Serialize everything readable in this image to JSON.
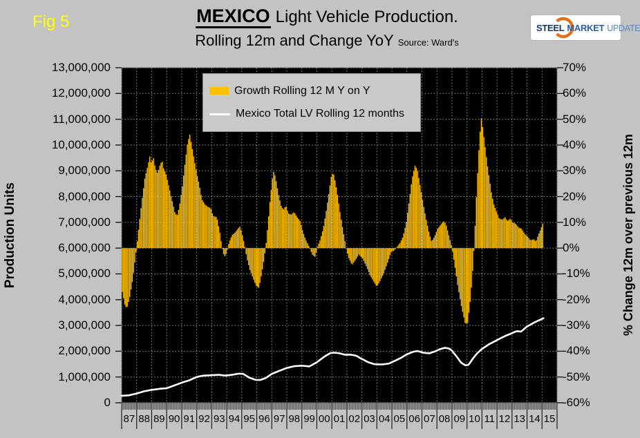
{
  "fig_label": "Fig 5",
  "title": {
    "emphasis": "MEXICO",
    "rest": "Light Vehicle Production.",
    "line2": "Rolling 12m and Change YoY",
    "source": "Source: Ward's"
  },
  "logo": {
    "steel": "STEEL",
    "market": "MARKET",
    "update": "UPDATE",
    "arc_color": "#e2711d"
  },
  "left_axis": {
    "title": "Production Units",
    "min": 0,
    "max": 13000000,
    "ticks": [
      "13,000,000",
      "12,000,000",
      "11,000,000",
      "10,000,000",
      "9,000,000",
      "8,000,000",
      "7,000,000",
      "6,000,000",
      "5,000,000",
      "4,000,000",
      "3,000,000",
      "2,000,000",
      "1,000,000",
      "0"
    ]
  },
  "right_axis": {
    "title": "% Change 12m over previous 12m",
    "min": -60,
    "max": 70,
    "ticks": [
      "70%",
      "60%",
      "50%",
      "40%",
      "30%",
      "20%",
      "10%",
      "0%",
      "-10%",
      "-20%",
      "-30%",
      "-40%",
      "-50%",
      "-60%"
    ]
  },
  "x_axis": {
    "labels": [
      "87",
      "88",
      "89",
      "90",
      "91",
      "92",
      "93",
      "94",
      "95",
      "96",
      "97",
      "98",
      "99",
      "00",
      "01",
      "02",
      "03",
      "04",
      "05",
      "06",
      "07",
      "08",
      "09",
      "10",
      "11",
      "12",
      "13",
      "14",
      "15"
    ]
  },
  "legend": [
    {
      "label": "Growth Rolling 12 M Y on Y",
      "type": "bar",
      "color": "#ffc000"
    },
    {
      "label": "Mexico Total LV Rolling 12 months",
      "type": "line",
      "color": "#ffffff"
    }
  ],
  "colors": {
    "page_bg": "#c3c3c3",
    "plot_bg": "#000000",
    "grid": "#9a9a9a",
    "bar": "#ffc000",
    "line": "#ffffff",
    "fig_label": "#ffff00"
  },
  "chart_data": {
    "type": "combo",
    "title": "MEXICO Light Vehicle Production. Rolling 12m and Change YoY",
    "x_start": 1987,
    "x_end": 2016,
    "grid": "dotted",
    "legend_position": "top-left-inside",
    "series": [
      {
        "name": "Growth Rolling 12 M Y on Y",
        "type": "bar",
        "axis": "right",
        "unit": "percent",
        "color": "#ffc000",
        "frequency": "monthly",
        "keypoints": [
          [
            1987.0,
            -17
          ],
          [
            1987.17,
            -22
          ],
          [
            1987.3,
            -23.5
          ],
          [
            1987.5,
            -19
          ],
          [
            1987.7,
            -12
          ],
          [
            1987.95,
            0
          ],
          [
            1988.1,
            8
          ],
          [
            1988.3,
            18
          ],
          [
            1988.5,
            27
          ],
          [
            1988.7,
            32
          ],
          [
            1988.85,
            36
          ],
          [
            1988.95,
            32
          ],
          [
            1989.05,
            36
          ],
          [
            1989.2,
            31
          ],
          [
            1989.35,
            29
          ],
          [
            1989.5,
            32
          ],
          [
            1989.65,
            34
          ],
          [
            1989.75,
            31
          ],
          [
            1989.9,
            29
          ],
          [
            1990.1,
            24
          ],
          [
            1990.3,
            19
          ],
          [
            1990.5,
            14
          ],
          [
            1990.65,
            12.5
          ],
          [
            1990.8,
            16
          ],
          [
            1991.0,
            24
          ],
          [
            1991.2,
            34
          ],
          [
            1991.35,
            41
          ],
          [
            1991.5,
            44
          ],
          [
            1991.65,
            39
          ],
          [
            1991.8,
            34
          ],
          [
            1992.0,
            28
          ],
          [
            1992.15,
            24
          ],
          [
            1992.3,
            19
          ],
          [
            1992.5,
            17
          ],
          [
            1992.7,
            16
          ],
          [
            1992.9,
            15.5
          ],
          [
            1993.05,
            12.5
          ],
          [
            1993.3,
            12
          ],
          [
            1993.5,
            6
          ],
          [
            1993.65,
            0
          ],
          [
            1993.8,
            -3.5
          ],
          [
            1993.95,
            -2
          ],
          [
            1994.1,
            2
          ],
          [
            1994.3,
            5
          ],
          [
            1994.5,
            6
          ],
          [
            1994.7,
            7.5
          ],
          [
            1994.85,
            8.5
          ],
          [
            1995.0,
            5
          ],
          [
            1995.15,
            1
          ],
          [
            1995.3,
            -4
          ],
          [
            1995.5,
            -8.5
          ],
          [
            1995.7,
            -11.5
          ],
          [
            1995.9,
            -14.5
          ],
          [
            1996.1,
            -15.5
          ],
          [
            1996.25,
            -11
          ],
          [
            1996.4,
            -6
          ],
          [
            1996.55,
            0
          ],
          [
            1996.7,
            9
          ],
          [
            1996.85,
            19
          ],
          [
            1997.0,
            27
          ],
          [
            1997.1,
            30
          ],
          [
            1997.25,
            26
          ],
          [
            1997.4,
            21
          ],
          [
            1997.6,
            16
          ],
          [
            1997.75,
            15
          ],
          [
            1997.9,
            16.5
          ],
          [
            1998.05,
            13.5
          ],
          [
            1998.25,
            13
          ],
          [
            1998.45,
            14
          ],
          [
            1998.65,
            12
          ],
          [
            1998.85,
            10.5
          ],
          [
            1999.0,
            7
          ],
          [
            1999.2,
            3.5
          ],
          [
            1999.45,
            0.5
          ],
          [
            1999.65,
            -2.5
          ],
          [
            1999.85,
            -3.5
          ],
          [
            2000.0,
            0.5
          ],
          [
            2000.2,
            3.5
          ],
          [
            2000.4,
            8
          ],
          [
            2000.6,
            15
          ],
          [
            2000.8,
            23
          ],
          [
            2000.95,
            29
          ],
          [
            2001.1,
            28.5
          ],
          [
            2001.3,
            22
          ],
          [
            2001.5,
            14
          ],
          [
            2001.7,
            7
          ],
          [
            2001.9,
            0.5
          ],
          [
            2002.05,
            -3.5
          ],
          [
            2002.3,
            -6.5
          ],
          [
            2002.55,
            -4.5
          ],
          [
            2002.75,
            -2.5
          ],
          [
            2003.0,
            -4
          ],
          [
            2003.25,
            -7
          ],
          [
            2003.5,
            -10.5
          ],
          [
            2003.75,
            -13
          ],
          [
            2003.95,
            -15
          ],
          [
            2004.15,
            -13
          ],
          [
            2004.4,
            -10
          ],
          [
            2004.65,
            -6
          ],
          [
            2004.9,
            -1.5
          ],
          [
            2005.1,
            -1
          ],
          [
            2005.3,
            0.5
          ],
          [
            2005.5,
            2
          ],
          [
            2005.7,
            4.5
          ],
          [
            2005.9,
            9.5
          ],
          [
            2006.1,
            18
          ],
          [
            2006.3,
            27
          ],
          [
            2006.5,
            32
          ],
          [
            2006.65,
            30.5
          ],
          [
            2006.85,
            24
          ],
          [
            2007.05,
            17
          ],
          [
            2007.25,
            11
          ],
          [
            2007.45,
            5.5
          ],
          [
            2007.6,
            2.5
          ],
          [
            2007.8,
            4.5
          ],
          [
            2008.0,
            7.5
          ],
          [
            2008.2,
            9
          ],
          [
            2008.4,
            10.5
          ],
          [
            2008.55,
            9.5
          ],
          [
            2008.75,
            5
          ],
          [
            2008.95,
            0.5
          ],
          [
            2009.15,
            -7
          ],
          [
            2009.35,
            -15
          ],
          [
            2009.6,
            -23
          ],
          [
            2009.85,
            -29.5
          ],
          [
            2010.0,
            -29
          ],
          [
            2010.15,
            -22
          ],
          [
            2010.3,
            -12
          ],
          [
            2010.45,
            2
          ],
          [
            2010.6,
            22
          ],
          [
            2010.75,
            38
          ],
          [
            2010.9,
            51
          ],
          [
            2011.0,
            47
          ],
          [
            2011.15,
            40
          ],
          [
            2011.3,
            33
          ],
          [
            2011.45,
            27
          ],
          [
            2011.6,
            21
          ],
          [
            2011.75,
            17
          ],
          [
            2011.9,
            14.5
          ],
          [
            2012.1,
            11.5
          ],
          [
            2012.3,
            11
          ],
          [
            2012.5,
            12
          ],
          [
            2012.65,
            10.5
          ],
          [
            2012.85,
            11.5
          ],
          [
            2013.0,
            10
          ],
          [
            2013.2,
            9.5
          ],
          [
            2013.4,
            8
          ],
          [
            2013.6,
            7.5
          ],
          [
            2013.8,
            5.5
          ],
          [
            2014.0,
            4.5
          ],
          [
            2014.2,
            3
          ],
          [
            2014.4,
            3.5
          ],
          [
            2014.55,
            2.5
          ],
          [
            2014.7,
            5
          ],
          [
            2014.85,
            7
          ],
          [
            2015.0,
            9.5
          ]
        ]
      },
      {
        "name": "Mexico Total LV Rolling 12 months",
        "type": "line",
        "axis": "left",
        "unit": "units",
        "color": "#ffffff",
        "frequency": "monthly",
        "keypoints": [
          [
            1987.0,
            270000
          ],
          [
            1987.5,
            290000
          ],
          [
            1988.0,
            360000
          ],
          [
            1988.5,
            445000
          ],
          [
            1989.0,
            500000
          ],
          [
            1989.6,
            545000
          ],
          [
            1990.0,
            565000
          ],
          [
            1990.5,
            670000
          ],
          [
            1991.0,
            780000
          ],
          [
            1991.5,
            870000
          ],
          [
            1992.0,
            1000000
          ],
          [
            1992.4,
            1050000
          ],
          [
            1993.0,
            1070000
          ],
          [
            1993.5,
            1085000
          ],
          [
            1993.9,
            1055000
          ],
          [
            1994.3,
            1080000
          ],
          [
            1994.8,
            1130000
          ],
          [
            1995.1,
            1120000
          ],
          [
            1995.5,
            975000
          ],
          [
            1995.9,
            890000
          ],
          [
            1996.2,
            880000
          ],
          [
            1996.6,
            960000
          ],
          [
            1997.0,
            1120000
          ],
          [
            1997.5,
            1240000
          ],
          [
            1998.0,
            1350000
          ],
          [
            1998.5,
            1420000
          ],
          [
            1999.0,
            1440000
          ],
          [
            1999.5,
            1410000
          ],
          [
            2000.0,
            1570000
          ],
          [
            2000.5,
            1790000
          ],
          [
            2000.9,
            1930000
          ],
          [
            2001.2,
            1945000
          ],
          [
            2001.5,
            1920000
          ],
          [
            2001.9,
            1860000
          ],
          [
            2002.2,
            1870000
          ],
          [
            2002.6,
            1830000
          ],
          [
            2003.0,
            1700000
          ],
          [
            2003.4,
            1580000
          ],
          [
            2003.8,
            1500000
          ],
          [
            2004.3,
            1485000
          ],
          [
            2004.8,
            1520000
          ],
          [
            2005.2,
            1630000
          ],
          [
            2005.6,
            1740000
          ],
          [
            2006.0,
            1880000
          ],
          [
            2006.4,
            1975000
          ],
          [
            2006.7,
            2010000
          ],
          [
            2007.1,
            1940000
          ],
          [
            2007.5,
            1920000
          ],
          [
            2007.9,
            2000000
          ],
          [
            2008.2,
            2080000
          ],
          [
            2008.5,
            2130000
          ],
          [
            2008.8,
            2110000
          ],
          [
            2009.0,
            2020000
          ],
          [
            2009.3,
            1800000
          ],
          [
            2009.6,
            1560000
          ],
          [
            2009.9,
            1450000
          ],
          [
            2010.1,
            1470000
          ],
          [
            2010.4,
            1720000
          ],
          [
            2010.7,
            1930000
          ],
          [
            2011.0,
            2090000
          ],
          [
            2011.5,
            2280000
          ],
          [
            2012.0,
            2430000
          ],
          [
            2012.5,
            2580000
          ],
          [
            2013.0,
            2700000
          ],
          [
            2013.3,
            2780000
          ],
          [
            2013.6,
            2760000
          ],
          [
            2014.0,
            2960000
          ],
          [
            2014.5,
            3120000
          ],
          [
            2015.1,
            3280000
          ]
        ]
      }
    ]
  }
}
